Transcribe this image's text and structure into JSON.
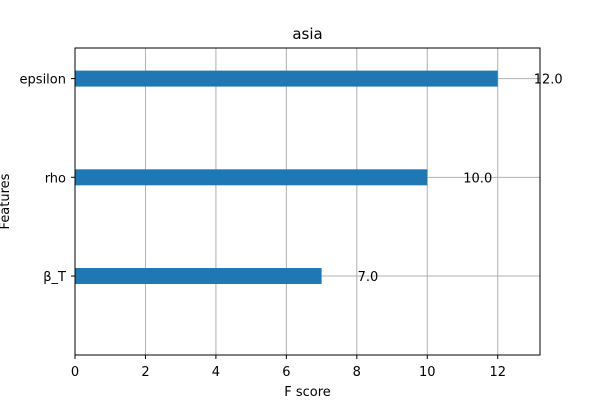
{
  "chart_data": {
    "type": "bar",
    "orientation": "horizontal",
    "title": "asia",
    "xlabel": "F score",
    "ylabel": "Features",
    "categories": [
      "β_T",
      "rho",
      "epsilon"
    ],
    "values": [
      7.0,
      10.0,
      12.0
    ],
    "value_labels": [
      "7.0",
      "10.0",
      "12.0"
    ],
    "xlim": [
      0,
      13.2
    ],
    "x_ticks": [
      0,
      2,
      4,
      6,
      8,
      10,
      12
    ],
    "grid": true,
    "legend": "none",
    "bar_color": "#1f77b4",
    "grid_color": "#b0b0b0"
  }
}
